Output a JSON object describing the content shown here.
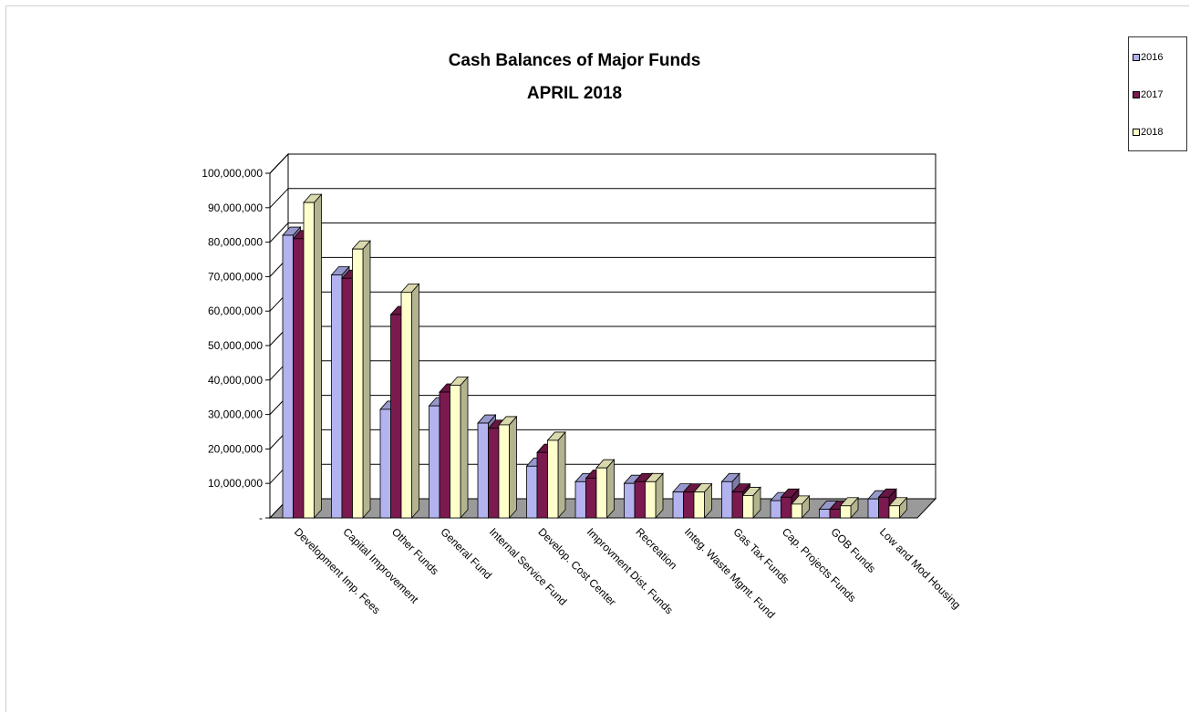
{
  "chart_data": {
    "type": "bar",
    "title": "Cash Balances of Major Funds",
    "subtitle": "APRIL 2018",
    "categories": [
      "Development Imp. Fees",
      "Capital Improvement",
      "Other Funds",
      "General Fund",
      "Internal Service Fund",
      "Develop. Cost Center",
      "Improvment Dist. Funds",
      "Recreation",
      "Integ. Waste Mgmt. Fund",
      "Gas Tax Funds",
      "Cap. Projects Funds",
      "GOB Funds",
      "Low and Mod Housing"
    ],
    "series": [
      {
        "name": "2016",
        "color": "#b3b3f0",
        "values": [
          82000000,
          70500000,
          31500000,
          32500000,
          27500000,
          15000000,
          10500000,
          10000000,
          7500000,
          10500000,
          5000000,
          2500000,
          5500000
        ]
      },
      {
        "name": "2017",
        "color": "#7a1a4e",
        "values": [
          81000000,
          69500000,
          59000000,
          36500000,
          26000000,
          19000000,
          11500000,
          10500000,
          7500000,
          7500000,
          6000000,
          2500000,
          6000000
        ]
      },
      {
        "name": "2018",
        "color": "#ffffcc",
        "values": [
          91500000,
          78000000,
          65500000,
          38500000,
          27000000,
          22500000,
          14500000,
          10500000,
          7500000,
          6500000,
          4000000,
          3500000,
          3500000
        ]
      }
    ],
    "yticks": [
      "-",
      "10,000,000",
      "20,000,000",
      "30,000,000",
      "40,000,000",
      "50,000,000",
      "60,000,000",
      "70,000,000",
      "80,000,000",
      "90,000,000",
      "100,000,000"
    ],
    "ylim": [
      0,
      100000000
    ],
    "grid": true,
    "legend_position": "top-right"
  },
  "legend": [
    {
      "label": "2016",
      "color": "#b3b3f0"
    },
    {
      "label": "2017",
      "color": "#7a1a4e"
    },
    {
      "label": "2018",
      "color": "#ffffcc"
    }
  ]
}
